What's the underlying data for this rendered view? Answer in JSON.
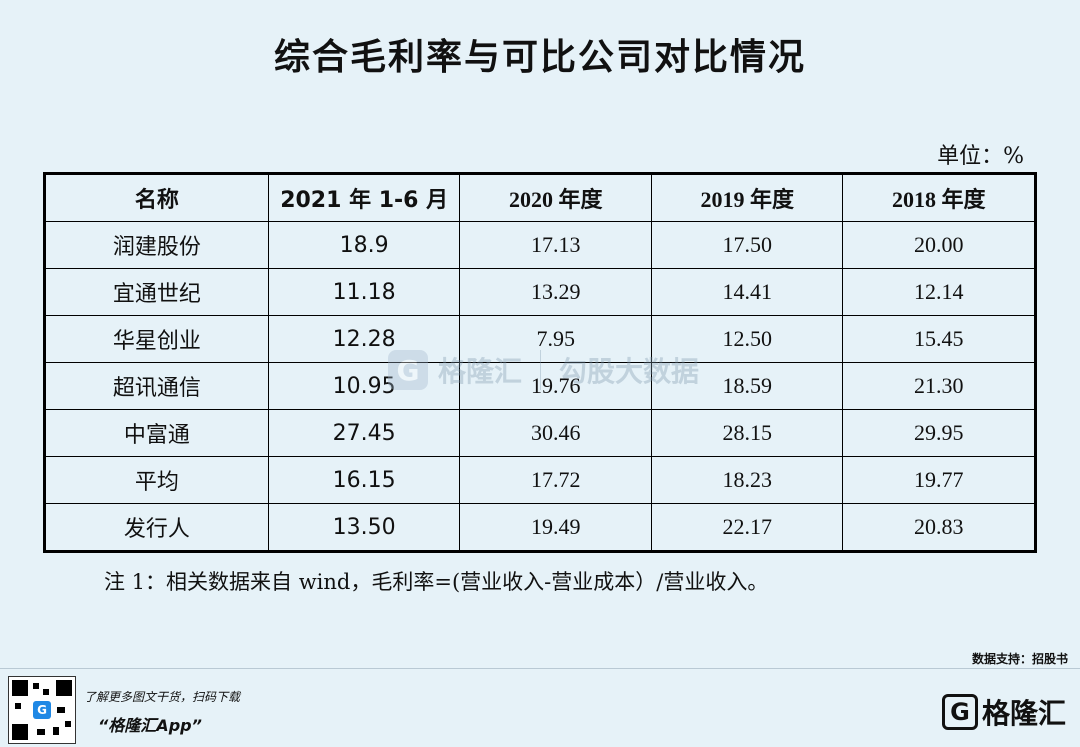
{
  "title": "综合毛利率与可比公司对比情况",
  "unit": "单位：%",
  "table": {
    "headers": [
      "名称",
      "2021 年 1-6 月",
      "2020 年度",
      "2019 年度",
      "2018 年度"
    ],
    "rows": [
      {
        "name": "润建股份",
        "h1_2021": "18.9",
        "y2020": "17.13",
        "y2019": "17.50",
        "y2018": "20.00"
      },
      {
        "name": "宜通世纪",
        "h1_2021": "11.18",
        "y2020": "13.29",
        "y2019": "14.41",
        "y2018": "12.14"
      },
      {
        "name": "华星创业",
        "h1_2021": "12.28",
        "y2020": "7.95",
        "y2019": "12.50",
        "y2018": "15.45"
      },
      {
        "name": "超讯通信",
        "h1_2021": "10.95",
        "y2020": "19.76",
        "y2019": "18.59",
        "y2018": "21.30"
      },
      {
        "name": "中富通",
        "h1_2021": "27.45",
        "y2020": "30.46",
        "y2019": "28.15",
        "y2018": "29.95"
      },
      {
        "name": "平均",
        "h1_2021": "16.15",
        "y2020": "17.72",
        "y2019": "18.23",
        "y2018": "19.77"
      },
      {
        "name": "发行人",
        "h1_2021": "13.50",
        "y2020": "19.49",
        "y2019": "22.17",
        "y2018": "20.83"
      }
    ]
  },
  "note": "注 1：相关数据来自 wind，毛利率=(营业收入-营业成本）/营业收入。",
  "watermark": {
    "left": "格隆汇",
    "right": "勾股大数据"
  },
  "data_source": "数据支持：招股书",
  "footer": {
    "promo": "了解更多图文干货，扫码下载",
    "app": "“格隆汇App”",
    "brand": "格隆汇",
    "logo_letter": "G"
  }
}
